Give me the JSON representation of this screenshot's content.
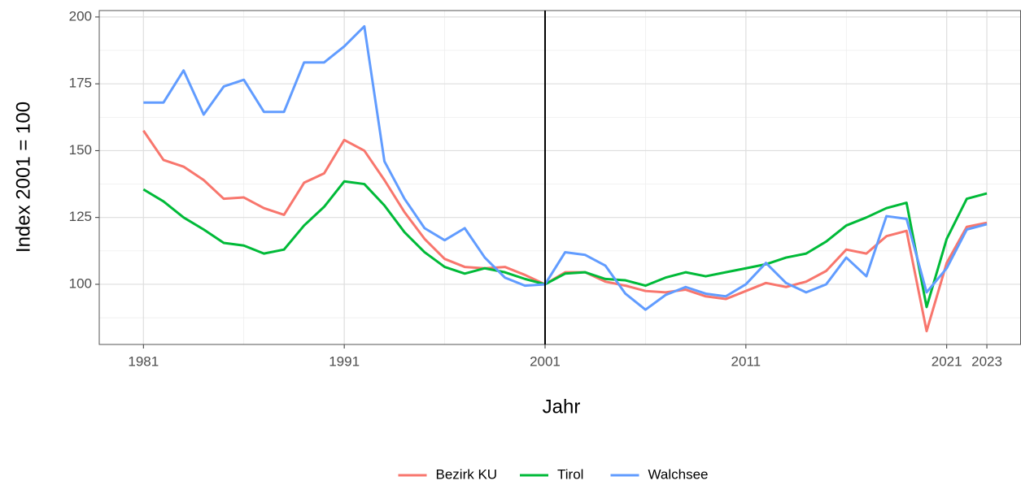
{
  "chart_data": {
    "type": "line",
    "x_label": "Jahr",
    "y_label": "Index 2001 = 100",
    "x": [
      1981,
      1982,
      1983,
      1984,
      1985,
      1986,
      1987,
      1988,
      1989,
      1990,
      1991,
      1992,
      1993,
      1994,
      1995,
      1996,
      1997,
      1998,
      1999,
      2000,
      2001,
      2002,
      2003,
      2004,
      2005,
      2006,
      2007,
      2008,
      2009,
      2010,
      2011,
      2012,
      2013,
      2014,
      2015,
      2016,
      2017,
      2018,
      2019,
      2020,
      2021,
      2022,
      2023
    ],
    "series": [
      {
        "name": "Bezirk KU",
        "color": "#F8766D",
        "values": [
          157.5,
          146.5,
          144,
          139,
          132,
          132.5,
          128.5,
          126,
          138,
          141.5,
          154,
          150,
          139,
          127,
          117,
          109.5,
          106.5,
          106,
          106.5,
          103.5,
          100,
          104.5,
          104.5,
          101,
          99.5,
          97.5,
          97,
          98,
          95.5,
          94.5,
          97.5,
          100.5,
          99,
          101,
          105,
          113,
          111.5,
          118,
          120,
          82.5,
          108,
          121.5,
          123
        ]
      },
      {
        "name": "Tirol",
        "color": "#00BA38",
        "values": [
          135.5,
          131,
          125,
          120.5,
          115.5,
          114.5,
          111.5,
          113,
          122,
          129,
          138.5,
          137.5,
          129.5,
          119.5,
          112,
          106.5,
          104,
          106,
          104.5,
          102,
          100,
          104,
          104.5,
          102,
          101.5,
          99.5,
          102.5,
          104.5,
          103,
          104.5,
          106,
          107.5,
          110,
          111.5,
          116,
          122,
          125,
          128.5,
          130.5,
          91.5,
          117,
          132,
          134
        ]
      },
      {
        "name": "Walchsee",
        "color": "#619CFF",
        "values": [
          168,
          168,
          180,
          163.5,
          174,
          176.5,
          164.5,
          164.5,
          183,
          183,
          189,
          196.5,
          146,
          132,
          121,
          116.5,
          121,
          110,
          102.5,
          99.5,
          100,
          112,
          111,
          107,
          96.5,
          90.5,
          96,
          99,
          96.5,
          95.5,
          100,
          108,
          100.5,
          97,
          100,
          110,
          103,
          125.5,
          124.5,
          97,
          106,
          120.5,
          122.5
        ]
      }
    ],
    "vline": 2001,
    "xlim": [
      1978.8,
      2024.7
    ],
    "xticks": [
      1981,
      1991,
      2001,
      2011,
      2021,
      2023
    ],
    "ylim": [
      77.5,
      202.4
    ],
    "yticks": [
      100,
      125,
      150,
      175,
      200
    ],
    "grid": true,
    "legend": "bottom"
  }
}
